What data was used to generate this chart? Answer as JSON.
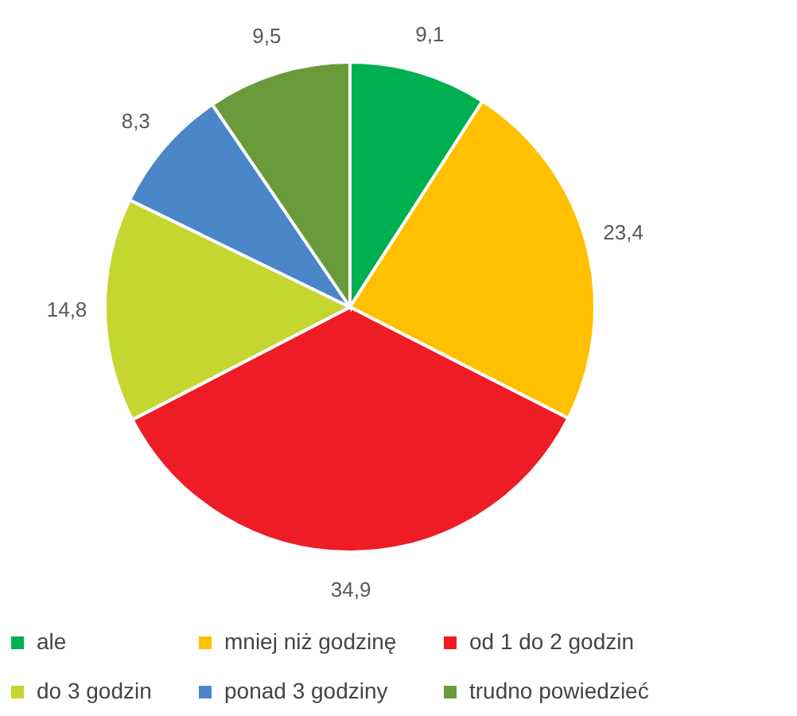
{
  "chart_data": {
    "type": "pie",
    "categories": [
      "ale",
      "mniej niż godzinę",
      "od 1 do 2 godzin",
      "do 3 godzin",
      "ponad 3 godziny",
      "trudno powiedzieć"
    ],
    "values": [
      9.1,
      23.4,
      34.9,
      14.8,
      8.3,
      9.5
    ],
    "colors": [
      "#00b050",
      "#ffc000",
      "#ee1c25",
      "#c5d630",
      "#4a86c8",
      "#6a9a3a"
    ],
    "value_labels": [
      "9,1",
      "23,4",
      "34,9",
      "14,8",
      "8,3",
      "9,5"
    ],
    "legend": "bottom"
  }
}
